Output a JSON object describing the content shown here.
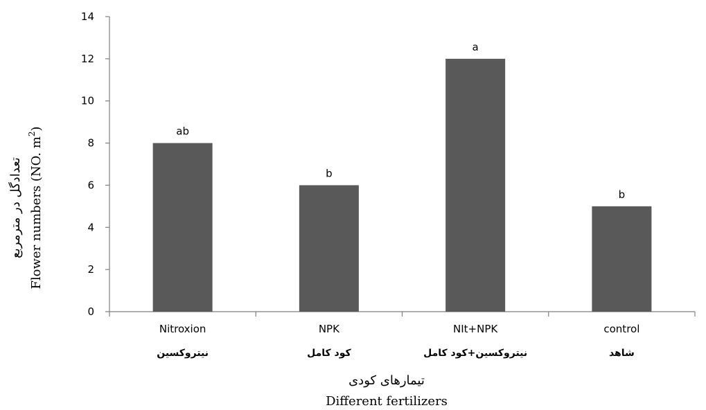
{
  "chart_data": {
    "type": "bar",
    "categories": [
      {
        "en": "Nitroxion",
        "fa": "نیتروکسین"
      },
      {
        "en": "NPK",
        "fa": "کود کامل"
      },
      {
        "en": "NIt+NPK",
        "fa": "نیتروکسین+کود کامل"
      },
      {
        "en": "control",
        "fa": "شاهد"
      }
    ],
    "values": [
      8,
      6,
      12,
      5
    ],
    "data_labels": [
      "ab",
      "b",
      "a",
      "b"
    ],
    "xlabel_fa": "تیمارهای کودی",
    "xlabel_en": "Different fertilizers",
    "ylabel_fa": "تعدادگل در مترمربع",
    "ylabel_en": "Flower numbers (NO. m",
    "ylabel_en_sup": "2",
    "ylabel_en_close": ")",
    "ylim": [
      0,
      14
    ],
    "yticks": [
      0,
      2,
      4,
      6,
      8,
      10,
      12,
      14
    ],
    "bar_color": "#595959",
    "grid": false,
    "legend": "none"
  }
}
